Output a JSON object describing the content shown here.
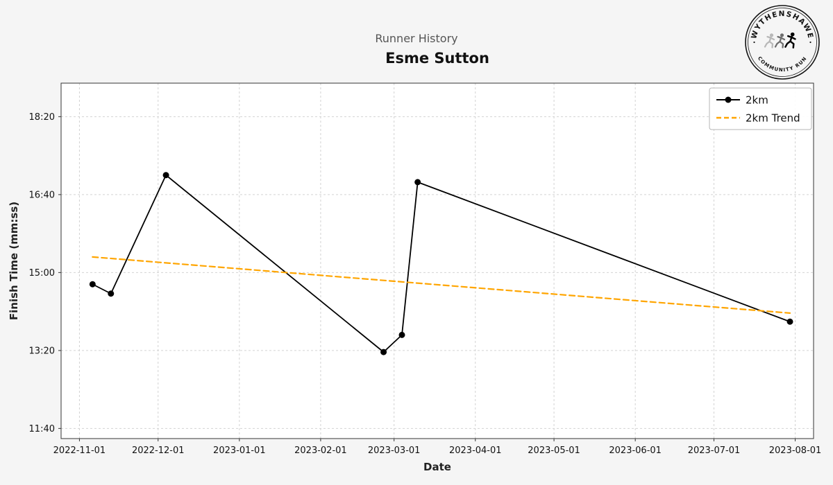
{
  "logo": {
    "top_text": "WYTHENSHAWE",
    "bottom_text": "COMMUNITY RUN"
  },
  "chart_data": {
    "type": "line",
    "title": "Esme Sutton",
    "subtitle": "Runner History",
    "xlabel": "Date",
    "ylabel": "Finish Time (mm:ss)",
    "x_tick_labels": [
      "2022-11-01",
      "2022-12-01",
      "2023-01-01",
      "2023-02-01",
      "2023-03-01",
      "2023-04-01",
      "2023-05-01",
      "2023-06-01",
      "2023-07-01",
      "2023-08-01"
    ],
    "y_tick_labels": [
      "11:40",
      "13:20",
      "15:00",
      "16:40",
      "18:20"
    ],
    "xlim_dates": [
      "2022-10-25",
      "2023-08-08"
    ],
    "ylim_mmss": [
      "11:27",
      "19:03"
    ],
    "grid": true,
    "grid_style": "dashed",
    "legend_position": "upper right",
    "background_color": "#f5f5f5",
    "plot_background_color": "#ffffff",
    "series": [
      {
        "name": "2km",
        "color": "#000000",
        "marker": "circle",
        "dash": "solid",
        "points": [
          {
            "date": "2022-11-06",
            "time": "14:45"
          },
          {
            "date": "2022-11-13",
            "time": "14:33"
          },
          {
            "date": "2022-12-04",
            "time": "17:05"
          },
          {
            "date": "2023-02-25",
            "time": "13:18"
          },
          {
            "date": "2023-03-04",
            "time": "13:40"
          },
          {
            "date": "2023-03-10",
            "time": "16:56"
          },
          {
            "date": "2023-07-30",
            "time": "13:57"
          }
        ]
      },
      {
        "name": "2km Trend",
        "color": "#FFA500",
        "marker": "none",
        "dash": "dashed",
        "points": [
          {
            "date": "2022-11-06",
            "time": "15:20"
          },
          {
            "date": "2023-07-30",
            "time": "14:08"
          }
        ]
      }
    ]
  }
}
